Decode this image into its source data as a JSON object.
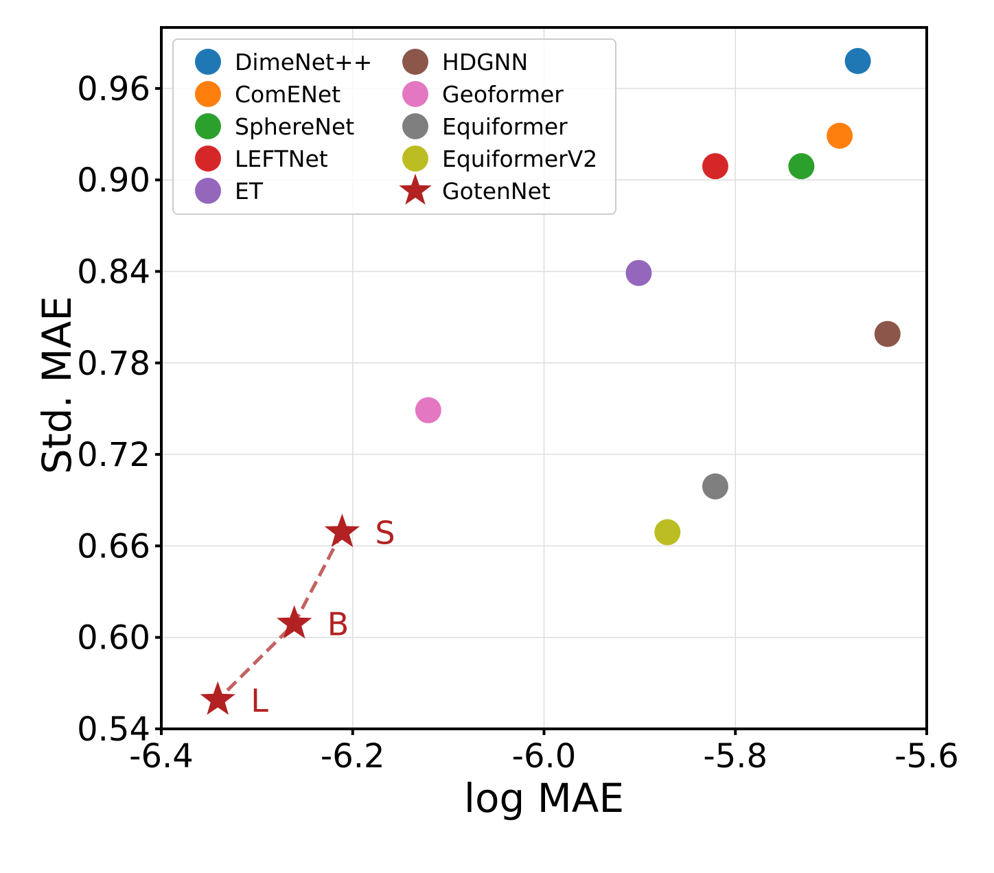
{
  "chart_data": {
    "type": "scatter",
    "title": "",
    "xlabel": "log MAE",
    "ylabel": "Std. MAE",
    "xlim": [
      -6.4,
      -5.6
    ],
    "ylim": [
      0.54,
      1.0
    ],
    "xticks": [
      -6.4,
      -6.2,
      -6.0,
      -5.8,
      -5.6
    ],
    "xtick_labels": [
      "-6.4",
      "-6.2",
      "-6.0",
      "-5.8",
      "-5.6"
    ],
    "yticks": [
      0.54,
      0.6,
      0.66,
      0.72,
      0.78,
      0.84,
      0.9,
      0.96
    ],
    "ytick_labels": [
      "0.54",
      "0.60",
      "0.66",
      "0.72",
      "0.78",
      "0.84",
      "0.90",
      "0.96"
    ],
    "grid": true,
    "legend_position": "top-left",
    "series": [
      {
        "name": "DimeNet++",
        "color": "#1f77b4",
        "marker": "circle",
        "x": [
          -5.672
        ],
        "y": [
          0.978
        ]
      },
      {
        "name": "ComENet",
        "color": "#ff7f0e",
        "marker": "circle",
        "x": [
          -5.691
        ],
        "y": [
          0.929
        ]
      },
      {
        "name": "SphereNet",
        "color": "#2ca02c",
        "marker": "circle",
        "x": [
          -5.731
        ],
        "y": [
          0.909
        ]
      },
      {
        "name": "LEFTNet",
        "color": "#d62728",
        "marker": "circle",
        "x": [
          -5.821
        ],
        "y": [
          0.909
        ]
      },
      {
        "name": "ET",
        "color": "#9467bd",
        "marker": "circle",
        "x": [
          -5.901
        ],
        "y": [
          0.839
        ]
      },
      {
        "name": "HDGNN",
        "color": "#8c564b",
        "marker": "circle",
        "x": [
          -5.641
        ],
        "y": [
          0.799
        ]
      },
      {
        "name": "Geoformer",
        "color": "#e377c2",
        "marker": "circle",
        "x": [
          -6.121
        ],
        "y": [
          0.749
        ]
      },
      {
        "name": "Equiformer",
        "color": "#7f7f7f",
        "marker": "circle",
        "x": [
          -5.821
        ],
        "y": [
          0.699
        ]
      },
      {
        "name": "EquiformerV2",
        "color": "#bcbd22",
        "marker": "circle",
        "x": [
          -5.871
        ],
        "y": [
          0.669
        ]
      },
      {
        "name": "GotenNet",
        "color": "#b22222",
        "marker": "star",
        "x": [
          -6.211,
          -6.261,
          -6.341
        ],
        "y": [
          0.669,
          0.609,
          0.559
        ],
        "point_labels": [
          "S",
          "B",
          "L"
        ],
        "connected": true,
        "line_style": "dashed",
        "line_color": "#c36262"
      }
    ]
  }
}
